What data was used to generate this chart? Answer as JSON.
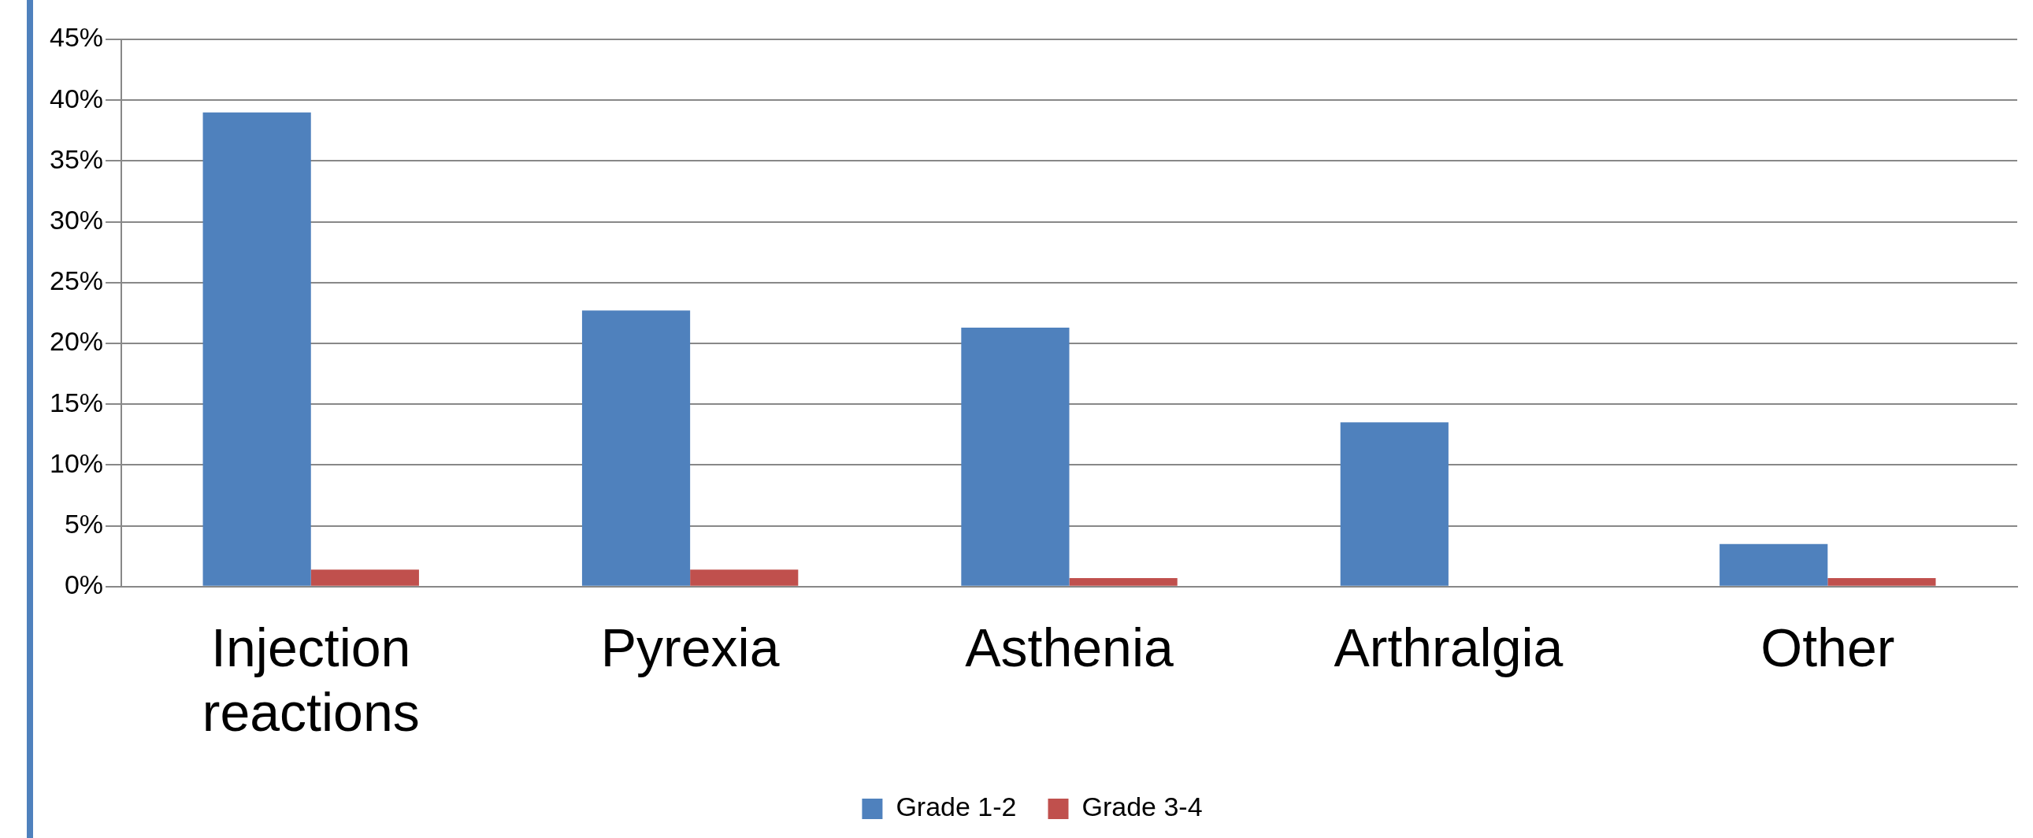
{
  "chart_data": {
    "type": "bar",
    "categories": [
      "Injection reactions",
      "Pyrexia",
      "Asthenia",
      "Arthralgia",
      "Other"
    ],
    "series": [
      {
        "name": "Grade 1-2",
        "color": "#4f81bd",
        "values": [
          39,
          22.7,
          21.3,
          13.5,
          3.5
        ]
      },
      {
        "name": "Grade 3-4",
        "color": "#c0504d",
        "values": [
          1.4,
          1.4,
          0.7,
          0,
          0.7
        ]
      }
    ],
    "ylim": [
      0,
      45
    ],
    "yticks": [
      {
        "value": 0,
        "label": "0%"
      },
      {
        "value": 5,
        "label": "5%"
      },
      {
        "value": 10,
        "label": "10%"
      },
      {
        "value": 15,
        "label": "15%"
      },
      {
        "value": 20,
        "label": "20%"
      },
      {
        "value": 25,
        "label": "25%"
      },
      {
        "value": 30,
        "label": "30%"
      },
      {
        "value": 35,
        "label": "35%"
      },
      {
        "value": 40,
        "label": "40%"
      },
      {
        "value": 45,
        "label": "45%"
      }
    ],
    "grid": "y",
    "legend": "bottom"
  }
}
